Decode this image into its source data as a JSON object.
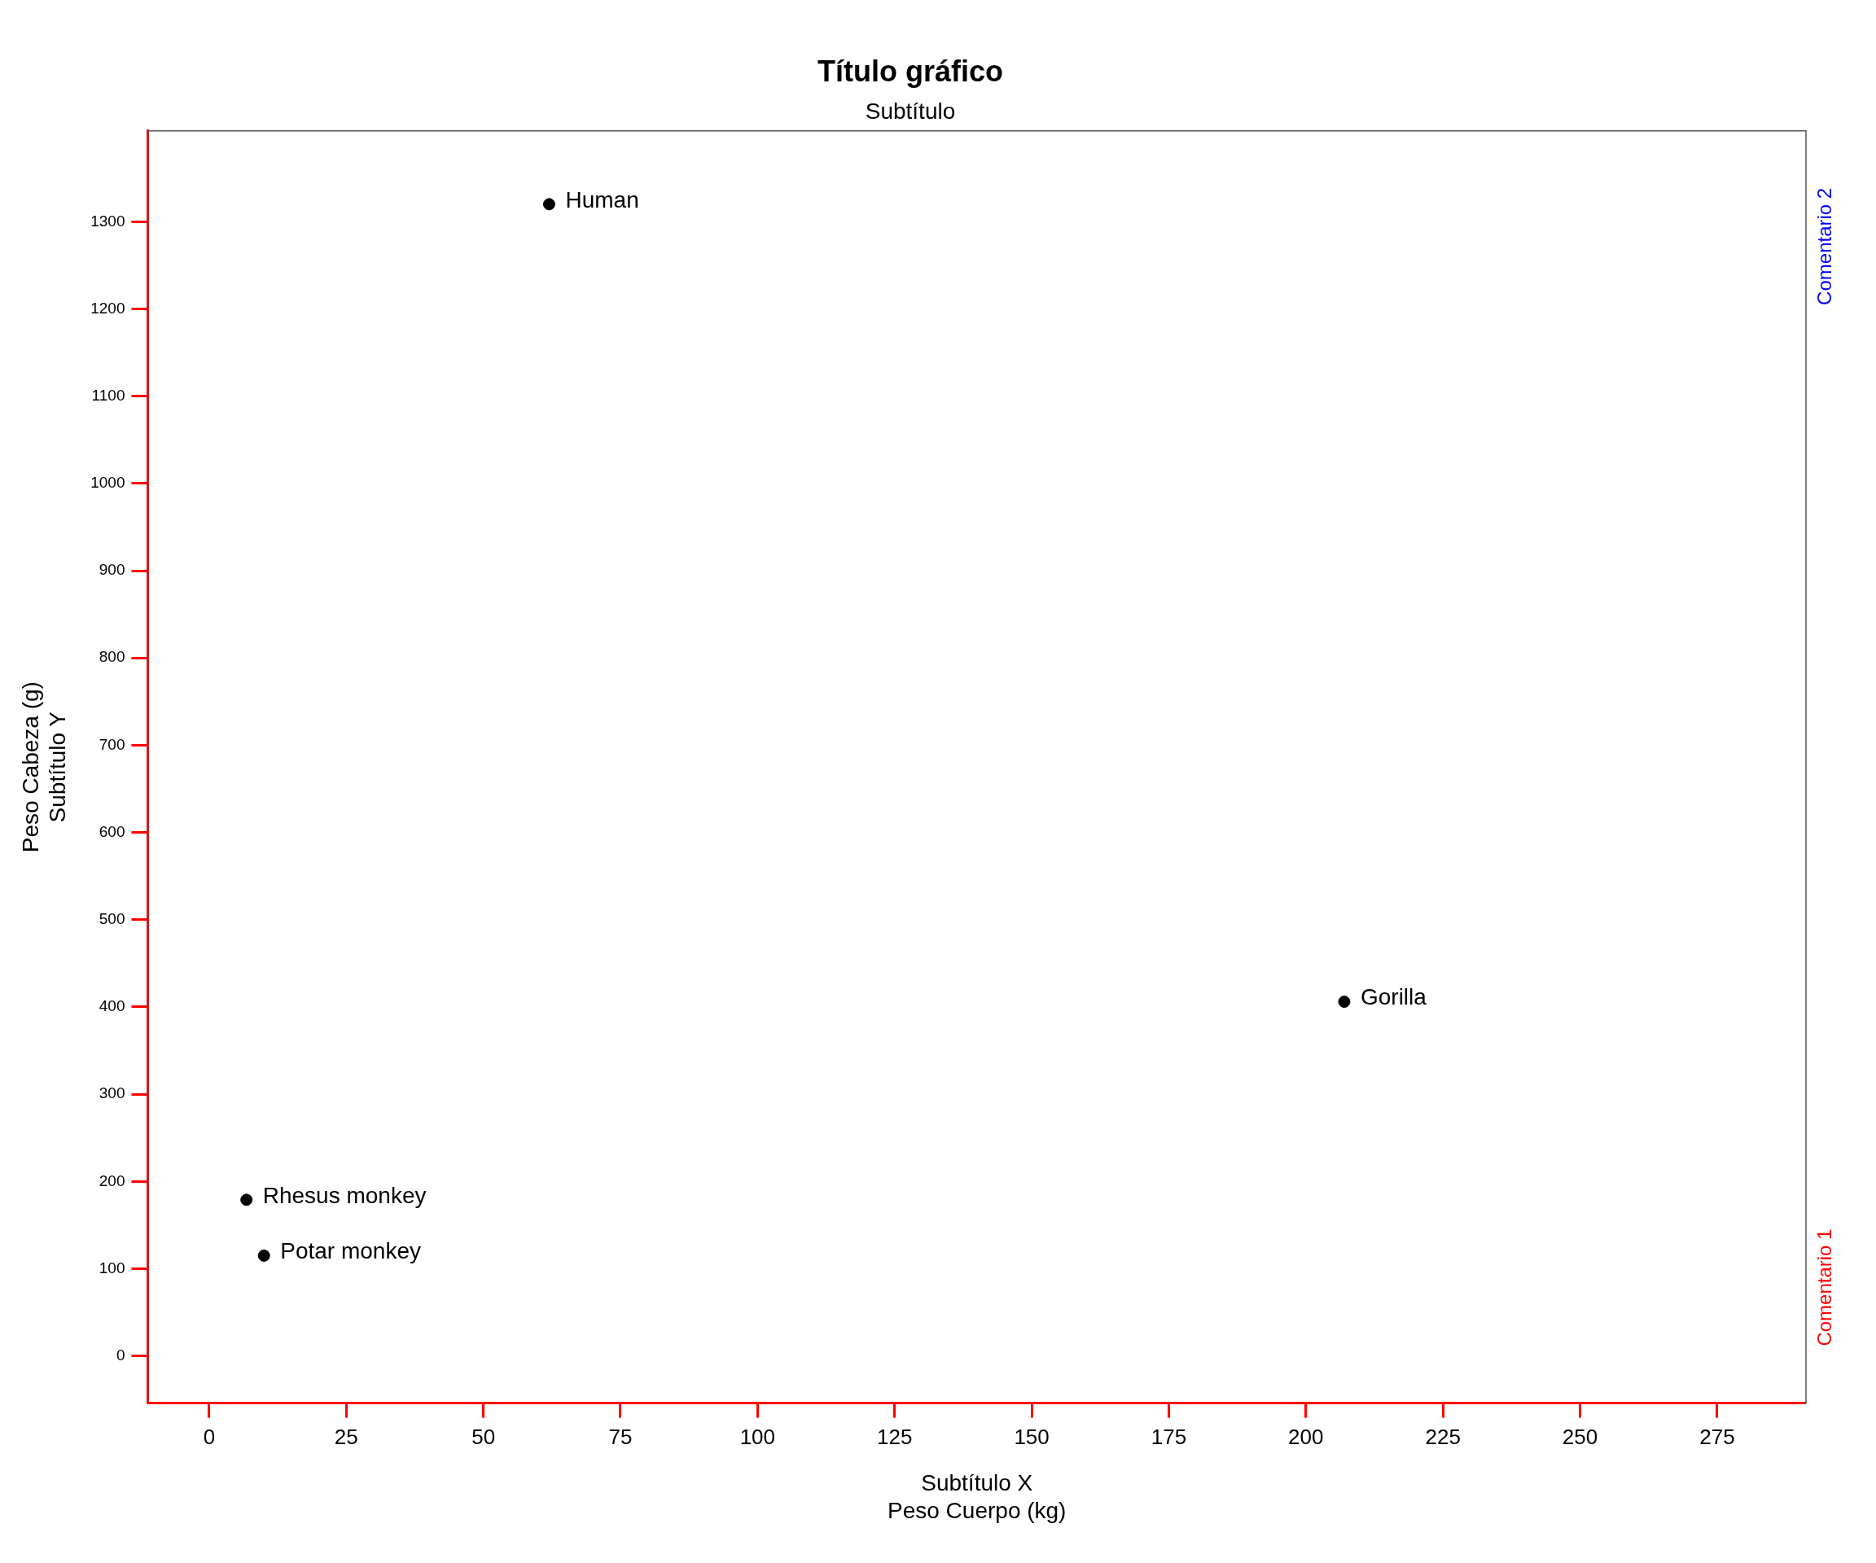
{
  "chart_data": {
    "type": "scatter",
    "title": "Título gráfico",
    "subtitle": "Subtítulo",
    "xlabel": "Peso Cuerpo (kg)",
    "ylabel": "Peso Cabeza (g)",
    "x": [
      6.8,
      10,
      62,
      207
    ],
    "values": [
      179,
      115,
      1320,
      406
    ],
    "color": "#000000",
    "marker": "circle",
    "grid": false,
    "legend": false,
    "xlim": [
      -11.2,
      291.2
    ],
    "ylim": [
      -54,
      1404
    ],
    "xticks": [
      0,
      25,
      50,
      75,
      100,
      125,
      150,
      175,
      200,
      225,
      250,
      275
    ],
    "yticks": [
      0,
      100,
      200,
      300,
      400,
      500,
      600,
      700,
      800,
      900,
      1000,
      1100,
      1200,
      1300
    ],
    "annotations": [
      {
        "text": "Rhesus monkey",
        "x": 6.8,
        "y": 179
      },
      {
        "text": "Potar monkey",
        "x": 10,
        "y": 115
      },
      {
        "text": "Human",
        "x": 62,
        "y": 1320
      },
      {
        "text": "Gorilla",
        "x": 207,
        "y": 406
      },
      "Subtítulo X",
      "Subtítulo Y",
      "Comentario 1",
      "Comentario 2"
    ]
  }
}
